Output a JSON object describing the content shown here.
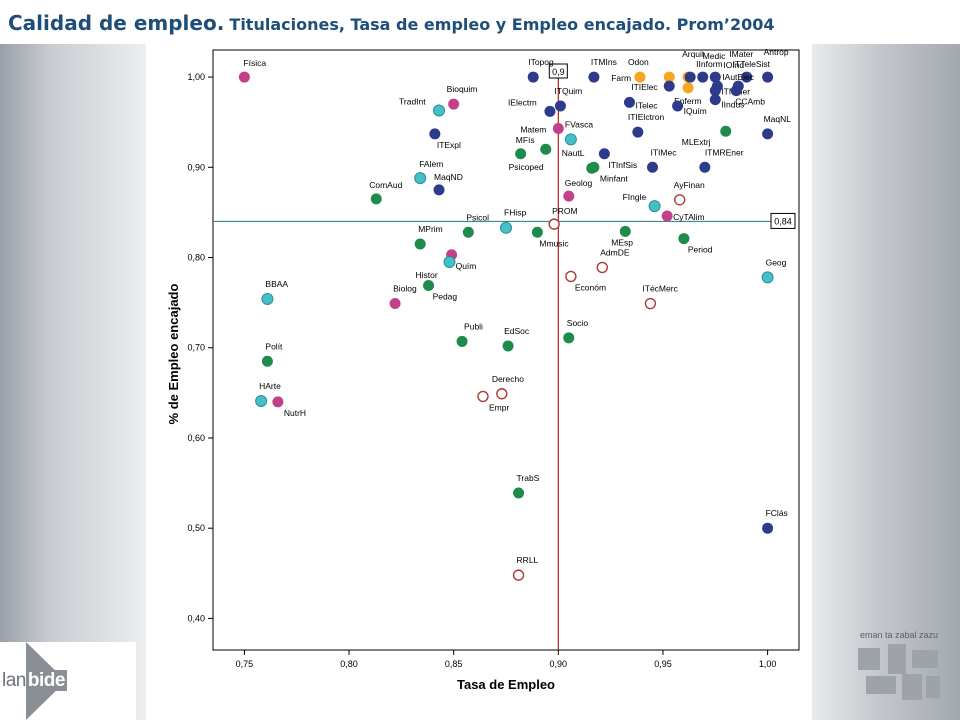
{
  "title": {
    "main": "Calidad de empleo.",
    "sub": "Titulaciones, Tasa de empleo y Empleo encajado. Prom’2004"
  },
  "colors": {
    "title": "#1f4e79",
    "navy": "#2e3a8c",
    "green": "#1e8a4c",
    "teal": "#45bfc8",
    "magenta": "#c2408a",
    "orange": "#f5a623",
    "hollow": "#b03a3a",
    "refline_v": "#b22222",
    "refline_h": "#3a8a8a"
  },
  "chart_data": {
    "type": "scatter",
    "xlabel": "Tasa de Empleo",
    "ylabel": "% de Empleo encajado",
    "xlim": [
      0.735,
      1.015
    ],
    "ylim": [
      0.365,
      1.03
    ],
    "xticks": [
      {
        "v": 0.75,
        "label": "0,75"
      },
      {
        "v": 0.8,
        "label": "0,80"
      },
      {
        "v": 0.85,
        "label": "0,85"
      },
      {
        "v": 0.9,
        "label": "0,90"
      },
      {
        "v": 0.95,
        "label": "0,95"
      },
      {
        "v": 1.0,
        "label": "1,00"
      }
    ],
    "yticks": [
      {
        "v": 0.4,
        "label": "0,40"
      },
      {
        "v": 0.5,
        "label": "0,50"
      },
      {
        "v": 0.6,
        "label": "0,60"
      },
      {
        "v": 0.7,
        "label": "0,70"
      },
      {
        "v": 0.8,
        "label": "0,80"
      },
      {
        "v": 0.9,
        "label": "0,90"
      },
      {
        "v": 1.0,
        "label": "1,00"
      }
    ],
    "grid": false,
    "reference_lines": [
      {
        "axis": "x",
        "value": 0.9,
        "label": "0,9"
      },
      {
        "axis": "y",
        "value": 0.84,
        "label": "0,84"
      }
    ],
    "points": [
      {
        "label": "Física",
        "x": 0.75,
        "y": 1.0,
        "color": "magenta",
        "lx": -1,
        "ly": -11
      },
      {
        "label": "TradInt",
        "x": 0.843,
        "y": 0.963,
        "color": "teal",
        "lx": -40,
        "ly": -6
      },
      {
        "label": "Bioquim",
        "x": 0.85,
        "y": 0.97,
        "color": "magenta",
        "lx": -7,
        "ly": -12
      },
      {
        "label": "ITExpl",
        "x": 0.841,
        "y": 0.937,
        "color": "navy",
        "lx": 2,
        "ly": 14
      },
      {
        "label": "FAlem",
        "x": 0.834,
        "y": 0.888,
        "color": "teal",
        "lx": -1,
        "ly": -11
      },
      {
        "label": "MaqND",
        "x": 0.843,
        "y": 0.875,
        "color": "navy",
        "lx": -5,
        "ly": -10
      },
      {
        "label": "ComAud",
        "x": 0.813,
        "y": 0.865,
        "color": "green",
        "lx": -7,
        "ly": -11
      },
      {
        "label": "ITopog",
        "x": 0.888,
        "y": 1.0,
        "color": "navy",
        "lx": -5,
        "ly": -12
      },
      {
        "label": "ITMIns",
        "x": 0.917,
        "y": 1.0,
        "color": "navy",
        "lx": -3,
        "ly": -12
      },
      {
        "label": "Odon",
        "x": 0.939,
        "y": 1.0,
        "color": "orange",
        "lx": -12,
        "ly": -12
      },
      {
        "label": "Farm",
        "x": 0.953,
        "y": 1.0,
        "color": "orange",
        "lx": -58,
        "ly": 4
      },
      {
        "label": "Arquit",
        "x": 0.962,
        "y": 1.0,
        "color": "orange",
        "lx": -6,
        "ly": -20
      },
      {
        "label": "IInform",
        "x": 0.963,
        "y": 1.0,
        "color": "navy",
        "lx": 6,
        "ly": -10
      },
      {
        "label": "Medic",
        "x": 0.969,
        "y": 1.0,
        "color": "navy",
        "lx": 0,
        "ly": -18
      },
      {
        "label": "IMater",
        "x": 0.975,
        "y": 1.0,
        "color": "navy",
        "lx": 14,
        "ly": -20
      },
      {
        "label": "Antrop",
        "x": 1.0,
        "y": 1.0,
        "color": "navy",
        "lx": -4,
        "ly": -22
      },
      {
        "label": "ITTeleSist",
        "x": 0.99,
        "y": 1.0,
        "color": "navy",
        "lx": -14,
        "ly": -10
      },
      {
        "label": "IOInd",
        "x": 0.976,
        "y": 0.99,
        "color": "navy",
        "lx": 6,
        "ly": -18
      },
      {
        "label": "IAutElec",
        "x": 0.986,
        "y": 0.99,
        "color": "navy",
        "lx": -16,
        "ly": -6
      },
      {
        "label": "ITIElec",
        "x": 0.953,
        "y": 0.99,
        "color": "navy",
        "lx": -38,
        "ly": 4
      },
      {
        "label": "ITMiner",
        "x": 0.975,
        "y": 0.985,
        "color": "navy",
        "lx": 6,
        "ly": 4
      },
      {
        "label": "Enferm",
        "x": 0.962,
        "y": 0.988,
        "color": "orange",
        "lx": -14,
        "ly": 16
      },
      {
        "label": "CCAmb",
        "x": 0.985,
        "y": 0.985,
        "color": "navy",
        "lx": -1,
        "ly": 14
      },
      {
        "label": "IIndus",
        "x": 0.975,
        "y": 0.975,
        "color": "navy",
        "lx": 6,
        "ly": 8
      },
      {
        "label": "ITQuim",
        "x": 0.901,
        "y": 0.968,
        "color": "navy",
        "lx": -6,
        "ly": -12
      },
      {
        "label": "IElectrn",
        "x": 0.896,
        "y": 0.962,
        "color": "navy",
        "lx": -42,
        "ly": -6
      },
      {
        "label": "ITelec",
        "x": 0.934,
        "y": 0.972,
        "color": "navy",
        "lx": 6,
        "ly": 6
      },
      {
        "label": "IQuím",
        "x": 0.957,
        "y": 0.968,
        "color": "navy",
        "lx": 6,
        "ly": 8
      },
      {
        "label": "ITIElctron",
        "x": 0.938,
        "y": 0.939,
        "color": "navy",
        "lx": -10,
        "ly": -12
      },
      {
        "label": "MLExtrj",
        "x": 0.98,
        "y": 0.94,
        "color": "green",
        "lx": -44,
        "ly": 14
      },
      {
        "label": "MaqNL",
        "x": 1.0,
        "y": 0.937,
        "color": "navy",
        "lx": -4,
        "ly": -12
      },
      {
        "label": "Matem",
        "x": 0.9,
        "y": 0.943,
        "color": "magenta",
        "lx": -38,
        "ly": 4
      },
      {
        "label": "FVasca",
        "x": 0.906,
        "y": 0.931,
        "color": "teal",
        "lx": -6,
        "ly": -12
      },
      {
        "label": "MFís",
        "x": 0.894,
        "y": 0.92,
        "color": "green",
        "lx": -30,
        "ly": -6
      },
      {
        "label": "Psicoped",
        "x": 0.882,
        "y": 0.915,
        "color": "green",
        "lx": -12,
        "ly": 16
      },
      {
        "label": "NautL",
        "x": 0.916,
        "y": 0.899,
        "color": "green",
        "lx": -30,
        "ly": -12
      },
      {
        "label": "ITInfSis",
        "x": 0.922,
        "y": 0.915,
        "color": "navy",
        "lx": 4,
        "ly": 14
      },
      {
        "label": "Minfant",
        "x": 0.917,
        "y": 0.9,
        "color": "green",
        "lx": 6,
        "ly": 14
      },
      {
        "label": "ITIMec",
        "x": 0.945,
        "y": 0.9,
        "color": "navy",
        "lx": -2,
        "ly": -12
      },
      {
        "label": "ITMREner",
        "x": 0.97,
        "y": 0.9,
        "color": "navy",
        "lx": 0,
        "ly": -12
      },
      {
        "label": "Geolog",
        "x": 0.905,
        "y": 0.868,
        "color": "magenta",
        "lx": -4,
        "ly": -10
      },
      {
        "label": "AyFinan",
        "x": 0.958,
        "y": 0.864,
        "color": "hollow",
        "lx": -6,
        "ly": -12
      },
      {
        "label": "FIngle",
        "x": 0.946,
        "y": 0.857,
        "color": "teal",
        "lx": -32,
        "ly": -6
      },
      {
        "label": "CyTAlim",
        "x": 0.952,
        "y": 0.846,
        "color": "magenta",
        "lx": 6,
        "ly": 4
      },
      {
        "label": "FHisp",
        "x": 0.875,
        "y": 0.833,
        "color": "teal",
        "lx": -2,
        "ly": -12
      },
      {
        "label": "PROM",
        "x": 0.898,
        "y": 0.837,
        "color": "hollow",
        "lx": -2,
        "ly": -10
      },
      {
        "label": "Psicol",
        "x": 0.857,
        "y": 0.828,
        "color": "green",
        "lx": -2,
        "ly": -12
      },
      {
        "label": "MPrim",
        "x": 0.834,
        "y": 0.815,
        "color": "green",
        "lx": -2,
        "ly": -12
      },
      {
        "label": "Mmusic",
        "x": 0.89,
        "y": 0.828,
        "color": "green",
        "lx": 2,
        "ly": 14
      },
      {
        "label": "MEsp",
        "x": 0.932,
        "y": 0.829,
        "color": "green",
        "lx": -14,
        "ly": 14
      },
      {
        "label": "Period",
        "x": 0.96,
        "y": 0.821,
        "color": "green",
        "lx": 4,
        "ly": 14
      },
      {
        "label": "AdmDE",
        "x": 0.921,
        "y": 0.789,
        "color": "hollow",
        "lx": -2,
        "ly": -12
      },
      {
        "label": "Quím",
        "x": 0.849,
        "y": 0.803,
        "color": "magenta",
        "lx": 4,
        "ly": 14
      },
      {
        "label": "Histor",
        "x": 0.848,
        "y": 0.795,
        "color": "teal",
        "lx": -34,
        "ly": 16
      },
      {
        "label": "Económ",
        "x": 0.906,
        "y": 0.779,
        "color": "hollow",
        "lx": 4,
        "ly": 14
      },
      {
        "label": "ITécMerc",
        "x": 0.944,
        "y": 0.749,
        "color": "hollow",
        "lx": -8,
        "ly": -12
      },
      {
        "label": "Biolog",
        "x": 0.822,
        "y": 0.749,
        "color": "magenta",
        "lx": -2,
        "ly": -12
      },
      {
        "label": "Pedag",
        "x": 0.838,
        "y": 0.769,
        "color": "green",
        "lx": 4,
        "ly": 14
      },
      {
        "label": "BBAA",
        "x": 0.761,
        "y": 0.754,
        "color": "teal",
        "lx": -2,
        "ly": -12
      },
      {
        "label": "Geog",
        "x": 1.0,
        "y": 0.778,
        "color": "teal",
        "lx": -2,
        "ly": -12
      },
      {
        "label": "Publi",
        "x": 0.854,
        "y": 0.707,
        "color": "green",
        "lx": 2,
        "ly": -12
      },
      {
        "label": "EdSoc",
        "x": 0.876,
        "y": 0.702,
        "color": "green",
        "lx": -4,
        "ly": -12
      },
      {
        "label": "Socio",
        "x": 0.905,
        "y": 0.711,
        "color": "green",
        "lx": -2,
        "ly": -12
      },
      {
        "label": "Polít",
        "x": 0.761,
        "y": 0.685,
        "color": "green",
        "lx": -2,
        "ly": -12
      },
      {
        "label": "Derecho",
        "x": 0.873,
        "y": 0.649,
        "color": "hollow",
        "lx": -10,
        "ly": -12
      },
      {
        "label": "Empr",
        "x": 0.864,
        "y": 0.646,
        "color": "hollow",
        "lx": 6,
        "ly": 14
      },
      {
        "label": "HArte",
        "x": 0.758,
        "y": 0.641,
        "color": "teal",
        "lx": -2,
        "ly": -12
      },
      {
        "label": "NutrH",
        "x": 0.766,
        "y": 0.64,
        "color": "magenta",
        "lx": 6,
        "ly": 14
      },
      {
        "label": "TrabS",
        "x": 0.881,
        "y": 0.539,
        "color": "green",
        "lx": -2,
        "ly": -12
      },
      {
        "label": "FClás",
        "x": 1.0,
        "y": 0.5,
        "color": "navy",
        "lx": -2,
        "ly": -12
      },
      {
        "label": "RRLL",
        "x": 0.881,
        "y": 0.448,
        "color": "hollow",
        "lx": -2,
        "ly": -12
      }
    ]
  },
  "logos": {
    "left_prefix": "lan",
    "left_highlight": "bide",
    "right_motto": "eman ta zabal zazu"
  }
}
